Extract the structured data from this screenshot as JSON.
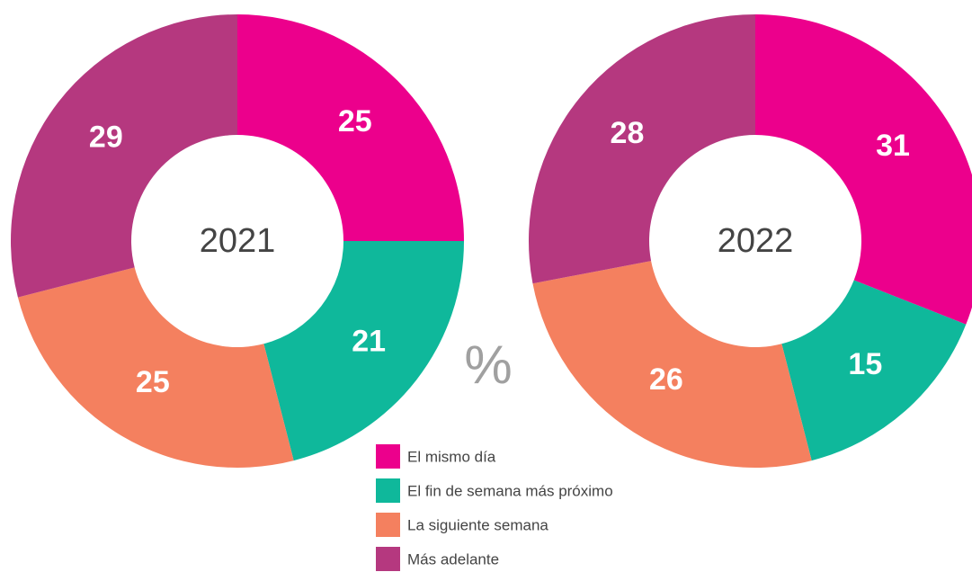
{
  "chart_data": [
    {
      "type": "pie",
      "title": "2021",
      "categories": [
        "El mismo día",
        "El fin de semana más próximo",
        "La siguiente semana",
        "Más adelante"
      ],
      "values": [
        25,
        21,
        25,
        29
      ],
      "colors": [
        "#ec008c",
        "#0fb89b",
        "#f4805f",
        "#b5387f"
      ]
    },
    {
      "type": "pie",
      "title": "2022",
      "categories": [
        "El mismo día",
        "El fin de semana más próximo",
        "La siguiente semana",
        "Más adelante"
      ],
      "values": [
        31,
        15,
        26,
        28
      ],
      "colors": [
        "#ec008c",
        "#0fb89b",
        "#f4805f",
        "#b5387f"
      ]
    }
  ],
  "annotation": "%"
}
